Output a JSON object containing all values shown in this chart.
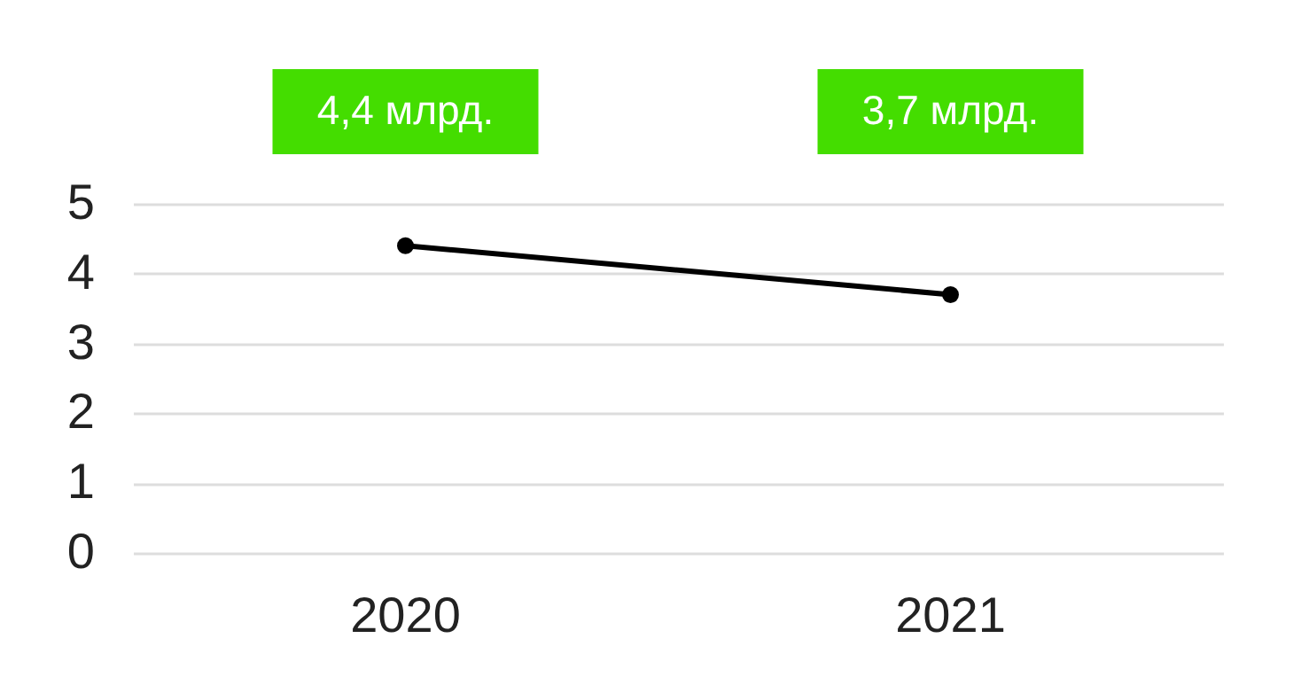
{
  "chart_data": {
    "type": "line",
    "categories": [
      "2020",
      "2021"
    ],
    "series": [
      {
        "color": "#000000",
        "values": [
          4.4,
          3.7
        ],
        "value_labels": [
          "4,4 млрд.",
          "3,7 млрд."
        ]
      }
    ],
    "ylim": [
      0,
      5
    ],
    "yticks": [
      0,
      1,
      2,
      3,
      4,
      5
    ],
    "grid": "y",
    "marker": "circle",
    "line_style": "solid"
  }
}
